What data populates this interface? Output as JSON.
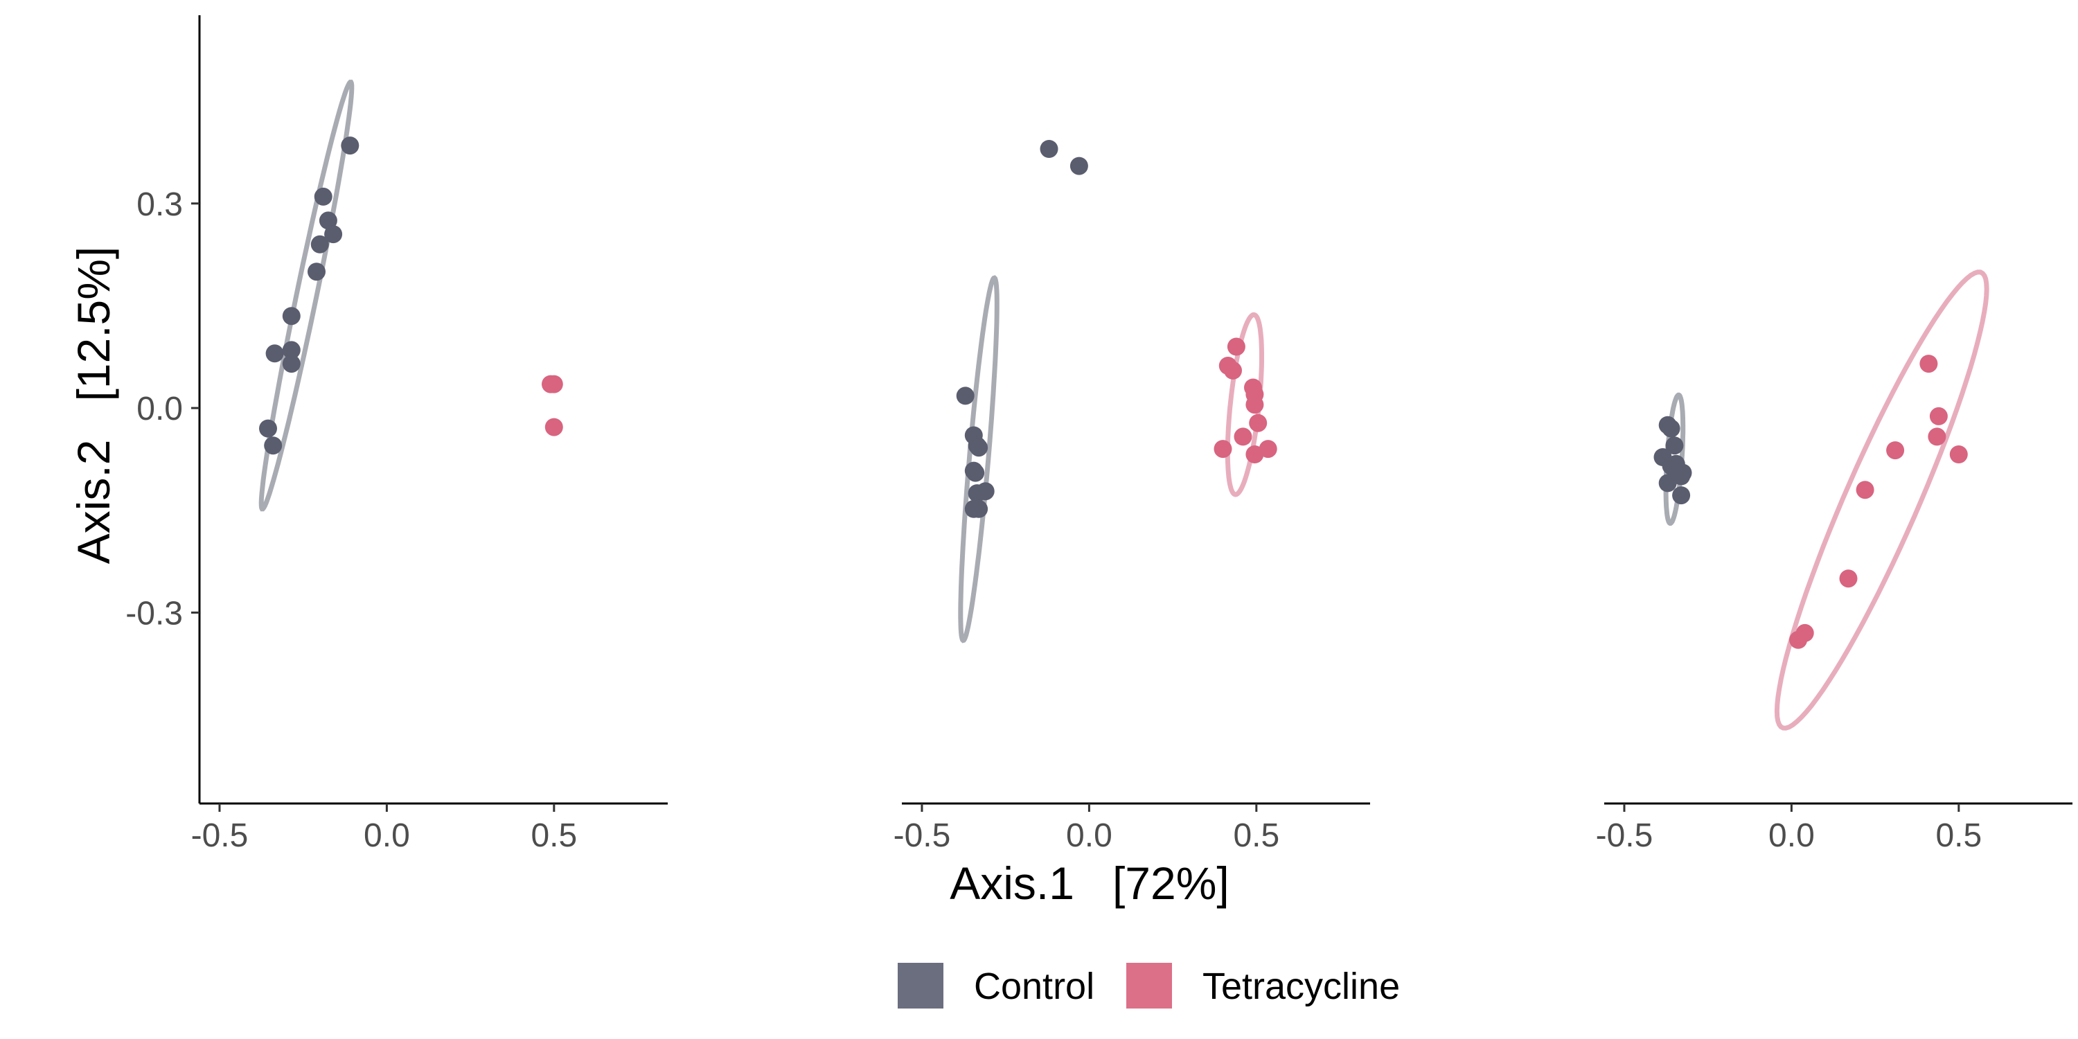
{
  "colors": {
    "Control": "#5a5d6e",
    "Tetracycline": "#d86480",
    "ellipse_Control": "#a9abb3",
    "ellipse_Tetracycline": "#e8adbd",
    "axis": "#000000"
  },
  "axes": {
    "xlabel": "Axis.1   [72%]",
    "ylabel": "Axis.2   [12.5%]",
    "xlim": [
      -0.56,
      0.84
    ],
    "ylim": [
      -0.58,
      0.57
    ],
    "xticks": [
      "-0.5",
      "0.0",
      "0.5"
    ],
    "yticks": [
      "-0.3",
      "0.0",
      "0.3"
    ]
  },
  "legend": {
    "placement": "bottom",
    "items": [
      {
        "label": "Control",
        "color": "#6b6e7f"
      },
      {
        "label": "Tetracycline",
        "color": "#dc7088"
      }
    ]
  },
  "chart_data": [
    {
      "type": "scatter",
      "panel": 1,
      "series": [
        {
          "name": "Control",
          "points": [
            [
              -0.11,
              0.385
            ],
            [
              -0.19,
              0.31
            ],
            [
              -0.175,
              0.275
            ],
            [
              -0.16,
              0.255
            ],
            [
              -0.2,
              0.24
            ],
            [
              -0.21,
              0.2
            ],
            [
              -0.285,
              0.135
            ],
            [
              -0.335,
              0.08
            ],
            [
              -0.285,
              0.085
            ],
            [
              -0.285,
              0.065
            ],
            [
              -0.355,
              -0.03
            ],
            [
              -0.34,
              -0.055
            ]
          ],
          "ellipse": {
            "cx": -0.24,
            "cy": 0.165,
            "a": 0.34,
            "b": 0.028,
            "angle_deg": 67
          }
        },
        {
          "name": "Tetracycline",
          "points": [
            [
              0.49,
              0.035
            ],
            [
              0.5,
              0.035
            ],
            [
              0.5,
              -0.028
            ]
          ]
        }
      ]
    },
    {
      "type": "scatter",
      "panel": 2,
      "series": [
        {
          "name": "Control",
          "points": [
            [
              -0.12,
              0.38
            ],
            [
              -0.03,
              0.355
            ],
            [
              -0.37,
              0.018
            ],
            [
              -0.345,
              -0.04
            ],
            [
              -0.335,
              -0.055
            ],
            [
              -0.33,
              -0.058
            ],
            [
              -0.345,
              -0.092
            ],
            [
              -0.34,
              -0.095
            ],
            [
              -0.335,
              -0.125
            ],
            [
              -0.31,
              -0.122
            ],
            [
              -0.345,
              -0.148
            ],
            [
              -0.33,
              -0.148
            ]
          ],
          "ellipse": {
            "cx": -0.33,
            "cy": -0.075,
            "a": 0.27,
            "b": 0.028,
            "angle_deg": 80
          }
        },
        {
          "name": "Tetracycline",
          "points": [
            [
              0.44,
              0.09
            ],
            [
              0.415,
              0.062
            ],
            [
              0.43,
              0.055
            ],
            [
              0.49,
              0.03
            ],
            [
              0.495,
              0.02
            ],
            [
              0.495,
              0.005
            ],
            [
              0.505,
              -0.022
            ],
            [
              0.46,
              -0.042
            ],
            [
              0.4,
              -0.06
            ],
            [
              0.535,
              -0.06
            ],
            [
              0.495,
              -0.068
            ]
          ],
          "ellipse": {
            "cx": 0.465,
            "cy": 0.005,
            "a": 0.135,
            "b": 0.042,
            "angle_deg": 77
          }
        }
      ]
    },
    {
      "type": "scatter",
      "panel": 3,
      "series": [
        {
          "name": "Control",
          "points": [
            [
              -0.37,
              -0.025
            ],
            [
              -0.36,
              -0.03
            ],
            [
              -0.35,
              -0.055
            ],
            [
              -0.385,
              -0.072
            ],
            [
              -0.36,
              -0.085
            ],
            [
              -0.345,
              -0.082
            ],
            [
              -0.34,
              -0.095
            ],
            [
              -0.325,
              -0.095
            ],
            [
              -0.33,
              -0.1
            ],
            [
              -0.37,
              -0.11
            ],
            [
              -0.33,
              -0.128
            ]
          ],
          "ellipse": {
            "cx": -0.35,
            "cy": -0.075,
            "a": 0.095,
            "b": 0.022,
            "angle_deg": 82
          }
        },
        {
          "name": "Tetracycline",
          "points": [
            [
              0.41,
              0.065
            ],
            [
              0.44,
              -0.012
            ],
            [
              0.435,
              -0.042
            ],
            [
              0.31,
              -0.062
            ],
            [
              0.5,
              -0.068
            ],
            [
              0.22,
              -0.12
            ],
            [
              0.17,
              -0.25
            ],
            [
              0.04,
              -0.33
            ],
            [
              0.02,
              -0.34
            ]
          ],
          "ellipse": {
            "cx": 0.27,
            "cy": -0.135,
            "a": 0.45,
            "b": 0.088,
            "angle_deg": 47
          }
        }
      ]
    }
  ]
}
